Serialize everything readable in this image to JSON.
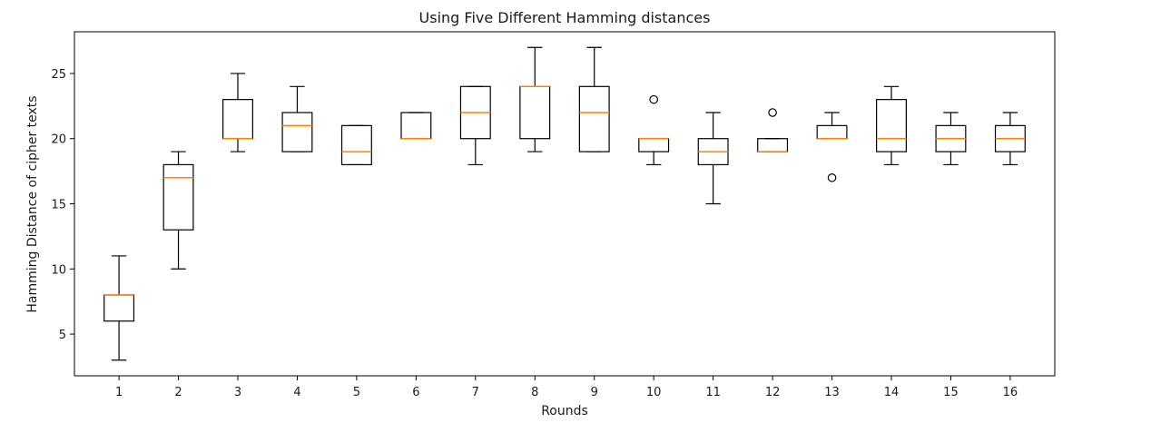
{
  "chart_data": {
    "type": "boxplot",
    "title": "Using Five Different Hamming distances",
    "xlabel": "Rounds",
    "ylabel": "Hamming Distance of cipher texts",
    "categories": [
      "1",
      "2",
      "3",
      "4",
      "5",
      "6",
      "7",
      "8",
      "9",
      "10",
      "11",
      "12",
      "13",
      "14",
      "15",
      "16"
    ],
    "ylim": [
      1.8,
      28.2
    ],
    "yticks": [
      5,
      10,
      15,
      20,
      25
    ],
    "grid": false,
    "colors": {
      "box": "#000000",
      "median": "#ff7f0e"
    },
    "boxes": [
      {
        "label": "1",
        "whislo": 3,
        "q1": 6,
        "med": 8,
        "q3": 8,
        "whishi": 11,
        "fliers": []
      },
      {
        "label": "2",
        "whislo": 10,
        "q1": 13,
        "med": 17,
        "q3": 18,
        "whishi": 19,
        "fliers": []
      },
      {
        "label": "3",
        "whislo": 19,
        "q1": 20,
        "med": 20,
        "q3": 23,
        "whishi": 25,
        "fliers": []
      },
      {
        "label": "4",
        "whislo": 19,
        "q1": 19,
        "med": 21,
        "q3": 22,
        "whishi": 24,
        "fliers": []
      },
      {
        "label": "5",
        "whislo": 18,
        "q1": 18,
        "med": 19,
        "q3": 21,
        "whishi": 21,
        "fliers": []
      },
      {
        "label": "6",
        "whislo": 20,
        "q1": 20,
        "med": 20,
        "q3": 22,
        "whishi": 22,
        "fliers": []
      },
      {
        "label": "7",
        "whislo": 18,
        "q1": 20,
        "med": 22,
        "q3": 24,
        "whishi": 24,
        "fliers": []
      },
      {
        "label": "8",
        "whislo": 19,
        "q1": 20,
        "med": 24,
        "q3": 24,
        "whishi": 27,
        "fliers": []
      },
      {
        "label": "9",
        "whislo": 19,
        "q1": 19,
        "med": 22,
        "q3": 24,
        "whishi": 27,
        "fliers": []
      },
      {
        "label": "10",
        "whislo": 18,
        "q1": 19,
        "med": 20,
        "q3": 20,
        "whishi": 20,
        "fliers": [
          23
        ]
      },
      {
        "label": "11",
        "whislo": 15,
        "q1": 18,
        "med": 19,
        "q3": 20,
        "whishi": 22,
        "fliers": []
      },
      {
        "label": "12",
        "whislo": 19,
        "q1": 19,
        "med": 19,
        "q3": 20,
        "whishi": 20,
        "fliers": [
          22
        ]
      },
      {
        "label": "13",
        "whislo": 20,
        "q1": 20,
        "med": 20,
        "q3": 21,
        "whishi": 22,
        "fliers": [
          17
        ]
      },
      {
        "label": "14",
        "whislo": 18,
        "q1": 19,
        "med": 20,
        "q3": 23,
        "whishi": 24,
        "fliers": []
      },
      {
        "label": "15",
        "whislo": 18,
        "q1": 19,
        "med": 20,
        "q3": 21,
        "whishi": 22,
        "fliers": []
      },
      {
        "label": "16",
        "whislo": 18,
        "q1": 19,
        "med": 20,
        "q3": 21,
        "whishi": 22,
        "fliers": []
      }
    ]
  }
}
